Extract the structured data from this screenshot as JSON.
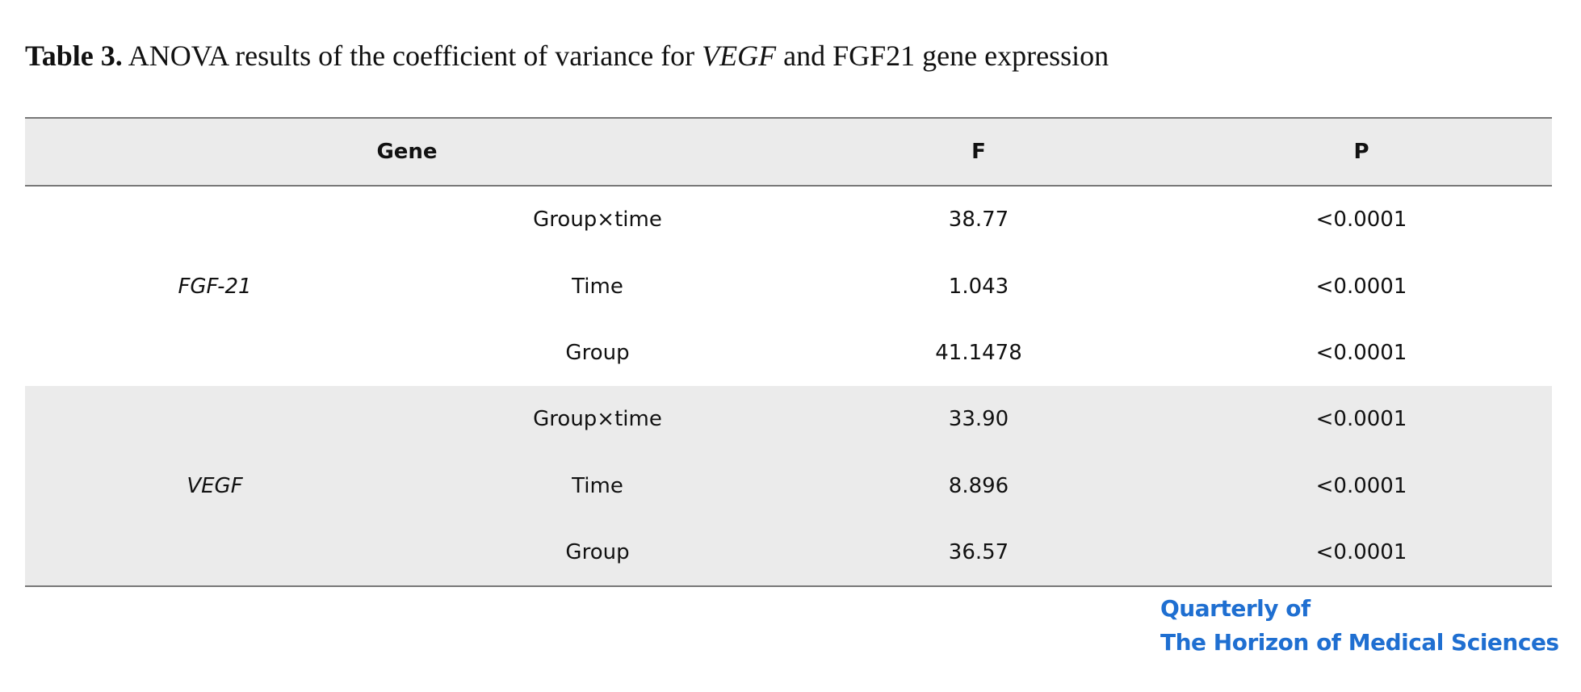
{
  "title": {
    "label": "Table 3.",
    "text_before": "ANOVA results of the coefficient of variance for",
    "italic": "VEGF",
    "text_after": "and FGF21 gene expression"
  },
  "table": {
    "headers": [
      "Gene",
      "F",
      "P"
    ],
    "groups": [
      {
        "gene": "FGF-21",
        "rows": [
          [
            "Group×time",
            "38.77",
            "<0.0001"
          ],
          [
            "Time",
            "1.043",
            "<0.0001"
          ],
          [
            "Group",
            "41.1478",
            "<0.0001"
          ]
        ]
      },
      {
        "gene": "VEGF",
        "rows": [
          [
            "Group×time",
            "33.90",
            "<0.0001"
          ],
          [
            "Time",
            "8.896",
            "<0.0001"
          ],
          [
            "Group",
            "36.57",
            "<0.0001"
          ]
        ]
      }
    ]
  },
  "logo": [
    "Quarterly of",
    "The Horizon of Medical Sciences"
  ]
}
